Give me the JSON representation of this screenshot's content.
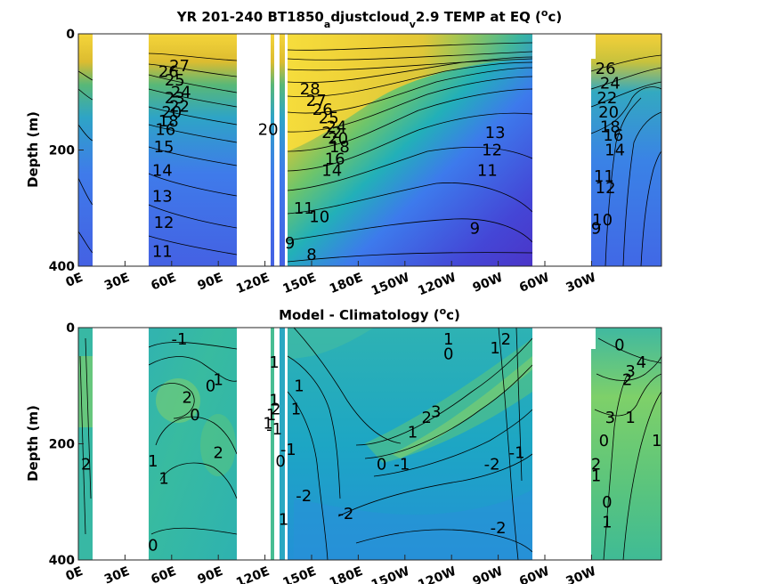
{
  "chart_data": [
    {
      "type": "heatmap",
      "title": {
        "main": "YR 201-240 BT1850",
        "sub1": "a",
        "mid": "djustcloud",
        "sub2": "v",
        "end": "2.9 TEMP at EQ (",
        "sup": "o",
        "tail": "c)"
      },
      "ylabel": "Depth (m)",
      "y_ticks": [
        "0",
        "200",
        "400"
      ],
      "x_ticks": [
        "0E",
        "30E",
        "60E",
        "90E",
        "120E",
        "150E",
        "180E",
        "150W",
        "120W",
        "90W",
        "60W",
        "30W"
      ],
      "ylim": [
        0,
        400
      ],
      "contour_labels": [
        {
          "text": "27",
          "lon": 65,
          "depth": 55
        },
        {
          "text": "26",
          "lon": 58,
          "depth": 65
        },
        {
          "text": "25",
          "lon": 62,
          "depth": 80
        },
        {
          "text": "24",
          "lon": 66,
          "depth": 100
        },
        {
          "text": "23",
          "lon": 62,
          "depth": 110
        },
        {
          "text": "22",
          "lon": 65,
          "depth": 125
        },
        {
          "text": "20",
          "lon": 60,
          "depth": 135
        },
        {
          "text": "18",
          "lon": 58,
          "depth": 150
        },
        {
          "text": "16",
          "lon": 56,
          "depth": 165
        },
        {
          "text": "15",
          "lon": 55,
          "depth": 195
        },
        {
          "text": "14",
          "lon": 54,
          "depth": 235
        },
        {
          "text": "13",
          "lon": 54,
          "depth": 280
        },
        {
          "text": "12",
          "lon": 55,
          "depth": 325
        },
        {
          "text": "11",
          "lon": 54,
          "depth": 375
        },
        {
          "text": "20",
          "lon": 122,
          "depth": 165
        },
        {
          "text": "9",
          "lon": 136,
          "depth": 360
        },
        {
          "text": "28",
          "lon": 149,
          "depth": 95
        },
        {
          "text": "27",
          "lon": 153,
          "depth": 115
        },
        {
          "text": "26",
          "lon": 157,
          "depth": 130
        },
        {
          "text": "25",
          "lon": 161,
          "depth": 145
        },
        {
          "text": "24",
          "lon": 166,
          "depth": 160
        },
        {
          "text": "22",
          "lon": 163,
          "depth": 170
        },
        {
          "text": "20",
          "lon": 167,
          "depth": 180
        },
        {
          "text": "18",
          "lon": 168,
          "depth": 195
        },
        {
          "text": "16",
          "lon": 165,
          "depth": 215
        },
        {
          "text": "14",
          "lon": 163,
          "depth": 235
        },
        {
          "text": "11",
          "lon": 145,
          "depth": 300
        },
        {
          "text": "10",
          "lon": 155,
          "depth": 315
        },
        {
          "text": "8",
          "lon": 150,
          "depth": 380
        },
        {
          "text": "13",
          "lon": 268,
          "depth": 170
        },
        {
          "text": "12",
          "lon": 266,
          "depth": 200
        },
        {
          "text": "11",
          "lon": 263,
          "depth": 235
        },
        {
          "text": "9",
          "lon": 255,
          "depth": 335
        },
        {
          "text": "26",
          "lon": 339,
          "depth": 60
        },
        {
          "text": "24",
          "lon": 342,
          "depth": 85
        },
        {
          "text": "22",
          "lon": 340,
          "depth": 110
        },
        {
          "text": "20",
          "lon": 341,
          "depth": 135
        },
        {
          "text": "18",
          "lon": 342,
          "depth": 160
        },
        {
          "text": "16",
          "lon": 344,
          "depth": 175
        },
        {
          "text": "14",
          "lon": 345,
          "depth": 200
        },
        {
          "text": "12",
          "lon": 339,
          "depth": 265
        },
        {
          "text": "11",
          "lon": 338,
          "depth": 245
        },
        {
          "text": "10",
          "lon": 337,
          "depth": 320
        },
        {
          "text": "9",
          "lon": 333,
          "depth": 335
        }
      ]
    },
    {
      "type": "heatmap",
      "title": {
        "main": "Model - Climatology (",
        "sup": "o",
        "tail": "c)"
      },
      "ylabel": "Depth (m)",
      "y_ticks": [
        "0",
        "200",
        "400"
      ],
      "x_ticks": [
        "0E",
        "30E",
        "60E",
        "90E",
        "120E",
        "150E",
        "180E",
        "150W",
        "120W",
        "90W",
        "60W",
        "30W"
      ],
      "ylim": [
        0,
        400
      ],
      "contour_labels": [
        {
          "text": "-1",
          "lon": 65,
          "depth": 20
        },
        {
          "text": "2",
          "lon": 70,
          "depth": 120
        },
        {
          "text": "0",
          "lon": 75,
          "depth": 150
        },
        {
          "text": "0",
          "lon": 85,
          "depth": 100
        },
        {
          "text": "1",
          "lon": 90,
          "depth": 90
        },
        {
          "text": "2",
          "lon": 90,
          "depth": 215
        },
        {
          "text": "1",
          "lon": 48,
          "depth": 230
        },
        {
          "text": "1",
          "lon": 55,
          "depth": 260
        },
        {
          "text": "0",
          "lon": 48,
          "depth": 375
        },
        {
          "text": "2",
          "lon": 5,
          "depth": 235
        },
        {
          "text": "1",
          "lon": 126,
          "depth": 60
        },
        {
          "text": "1",
          "lon": 126,
          "depth": 125
        },
        {
          "text": "2",
          "lon": 127,
          "depth": 140
        },
        {
          "text": "1",
          "lon": 124,
          "depth": 150
        },
        {
          "text": "1",
          "lon": 122,
          "depth": 165
        },
        {
          "text": "-1",
          "lon": 126,
          "depth": 175
        },
        {
          "text": "0",
          "lon": 130,
          "depth": 230
        },
        {
          "text": "-1",
          "lon": 135,
          "depth": 210
        },
        {
          "text": "1",
          "lon": 132,
          "depth": 330
        },
        {
          "text": "-2",
          "lon": 145,
          "depth": 290
        },
        {
          "text": "-2",
          "lon": 172,
          "depth": 320
        },
        {
          "text": "1",
          "lon": 142,
          "depth": 100
        },
        {
          "text": "1",
          "lon": 140,
          "depth": 140
        },
        {
          "text": "1",
          "lon": 215,
          "depth": 180
        },
        {
          "text": "2",
          "lon": 224,
          "depth": 155
        },
        {
          "text": "3",
          "lon": 230,
          "depth": 145
        },
        {
          "text": "-1",
          "lon": 208,
          "depth": 235
        },
        {
          "text": "0",
          "lon": 195,
          "depth": 235
        },
        {
          "text": "0",
          "lon": 238,
          "depth": 45
        },
        {
          "text": "1",
          "lon": 238,
          "depth": 20
        },
        {
          "text": "1",
          "lon": 268,
          "depth": 35
        },
        {
          "text": "2",
          "lon": 275,
          "depth": 20
        },
        {
          "text": "-2",
          "lon": 266,
          "depth": 235
        },
        {
          "text": "-1",
          "lon": 282,
          "depth": 215
        },
        {
          "text": "-2",
          "lon": 270,
          "depth": 345
        },
        {
          "text": "0",
          "lon": 348,
          "depth": 30
        },
        {
          "text": "4",
          "lon": 362,
          "depth": 60
        },
        {
          "text": "3",
          "lon": 355,
          "depth": 75
        },
        {
          "text": "2",
          "lon": 353,
          "depth": 90
        },
        {
          "text": "1",
          "lon": 355,
          "depth": 155
        },
        {
          "text": "3",
          "lon": 342,
          "depth": 155
        },
        {
          "text": "0",
          "lon": 338,
          "depth": 195
        },
        {
          "text": "2",
          "lon": 333,
          "depth": 235
        },
        {
          "text": "1",
          "lon": 333,
          "depth": 255
        },
        {
          "text": "0",
          "lon": 340,
          "depth": 300
        },
        {
          "text": "1",
          "lon": 340,
          "depth": 335
        },
        {
          "text": "1",
          "lon": 372,
          "depth": 195
        }
      ]
    }
  ],
  "colors": {
    "land": "#ffffff",
    "warm": "#f9e03a",
    "mid_green": "#59c06a",
    "cool_blue": "#3e74ee",
    "deep_violet": "#4a31c6",
    "anomaly_teal": "#2bb0b8",
    "anomaly_green": "#7fd06b"
  }
}
